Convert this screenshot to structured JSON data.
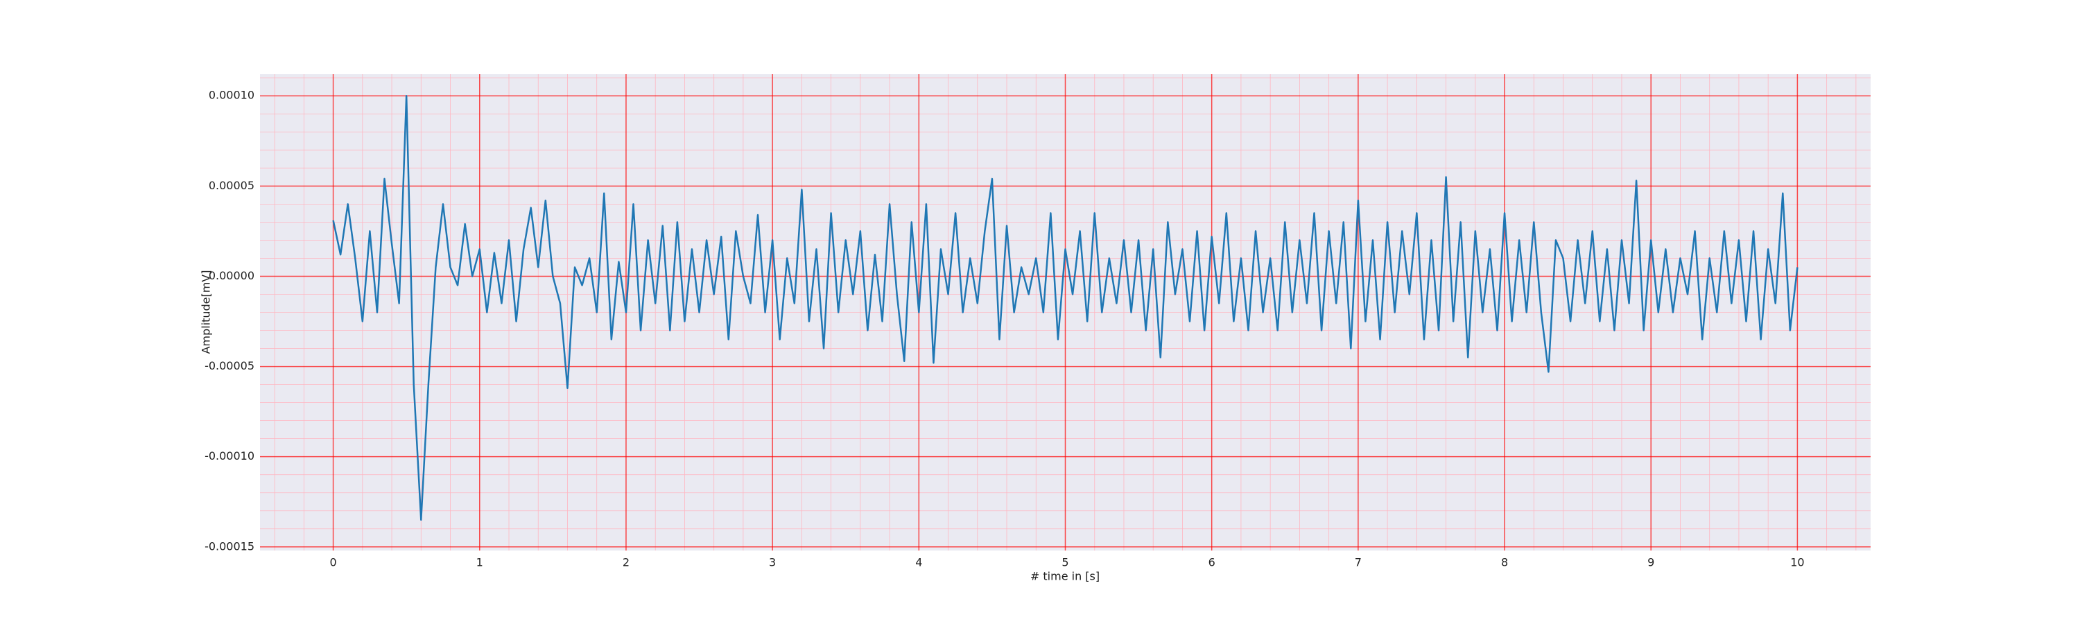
{
  "chart_data": {
    "type": "line",
    "x_label": "# time in [s]",
    "y_label": "Amplitude[mV]",
    "color": "#1f77b4",
    "grid": true,
    "minor_grid": true,
    "xlim": [
      -0.5,
      10.5
    ],
    "xticks": [
      0,
      1,
      2,
      3,
      4,
      5,
      6,
      7,
      8,
      9,
      10
    ],
    "ylim": [
      -0.000152,
      0.000112
    ],
    "yticks": [
      {
        "value": -0.00015,
        "label": "-0.00015"
      },
      {
        "value": -0.0001,
        "label": "-0.00010"
      },
      {
        "value": -5e-05,
        "label": "-0.00005"
      },
      {
        "value": 0,
        "label": "0.00000"
      },
      {
        "value": 5e-05,
        "label": "0.00005"
      },
      {
        "value": 0.0001,
        "label": "0.00010"
      }
    ],
    "x": [
      0,
      0.05,
      0.1,
      0.15,
      0.2,
      0.25,
      0.3,
      0.35,
      0.4,
      0.45,
      0.5,
      0.55,
      0.6,
      0.65,
      0.7,
      0.75,
      0.8,
      0.85,
      0.9,
      0.95,
      1,
      1.05,
      1.1,
      1.15,
      1.2,
      1.25,
      1.3,
      1.35,
      1.4,
      1.45,
      1.5,
      1.55,
      1.6,
      1.65,
      1.7,
      1.75,
      1.8,
      1.85,
      1.9,
      1.95,
      2,
      2.05,
      2.1,
      2.15,
      2.2,
      2.25,
      2.3,
      2.35,
      2.4,
      2.45,
      2.5,
      2.55,
      2.6,
      2.65,
      2.7,
      2.75,
      2.8,
      2.85,
      2.9,
      2.95,
      3,
      3.05,
      3.1,
      3.15,
      3.2,
      3.25,
      3.3,
      3.35,
      3.4,
      3.45,
      3.5,
      3.55,
      3.6,
      3.65,
      3.7,
      3.75,
      3.8,
      3.85,
      3.9,
      3.95,
      4,
      4.05,
      4.1,
      4.15,
      4.2,
      4.25,
      4.3,
      4.35,
      4.4,
      4.45,
      4.5,
      4.55,
      4.6,
      4.65,
      4.7,
      4.75,
      4.8,
      4.85,
      4.9,
      4.95,
      5,
      5.05,
      5.1,
      5.15,
      5.2,
      5.25,
      5.3,
      5.35,
      5.4,
      5.45,
      5.5,
      5.55,
      5.6,
      5.65,
      5.7,
      5.75,
      5.8,
      5.85,
      5.9,
      5.95,
      6,
      6.05,
      6.1,
      6.15,
      6.2,
      6.25,
      6.3,
      6.35,
      6.4,
      6.45,
      6.5,
      6.55,
      6.6,
      6.65,
      6.7,
      6.75,
      6.8,
      6.85,
      6.9,
      6.95,
      7,
      7.05,
      7.1,
      7.15,
      7.2,
      7.25,
      7.3,
      7.35,
      7.4,
      7.45,
      7.5,
      7.55,
      7.6,
      7.65,
      7.7,
      7.75,
      7.8,
      7.85,
      7.9,
      7.95,
      8,
      8.05,
      8.1,
      8.15,
      8.2,
      8.25,
      8.3,
      8.35,
      8.4,
      8.45,
      8.5,
      8.55,
      8.6,
      8.65,
      8.7,
      8.75,
      8.8,
      8.85,
      8.9,
      8.95,
      9,
      9.05,
      9.1,
      9.15,
      9.2,
      9.25,
      9.3,
      9.35,
      9.4,
      9.45,
      9.5,
      9.55,
      9.6,
      9.65,
      9.7,
      9.75,
      9.8,
      9.85,
      9.9,
      9.95,
      10
    ],
    "values": [
      3.1e-05,
      1.2e-05,
      4e-05,
      1e-05,
      -2.5e-05,
      2.5e-05,
      -2e-05,
      5.4e-05,
      1.8e-05,
      -1.5e-05,
      0.0001,
      -6e-05,
      -0.000135,
      -6e-05,
      5e-06,
      4e-05,
      5e-06,
      -5e-06,
      2.9e-05,
      0,
      1.5e-05,
      -2e-05,
      1.3e-05,
      -1.5e-05,
      2e-05,
      -2.5e-05,
      1.5e-05,
      3.8e-05,
      5e-06,
      4.2e-05,
      0,
      -1.5e-05,
      -6.2e-05,
      5e-06,
      -5e-06,
      1e-05,
      -2e-05,
      4.6e-05,
      -3.5e-05,
      8e-06,
      -2e-05,
      4e-05,
      -3e-05,
      2e-05,
      -1.5e-05,
      2.8e-05,
      -3e-05,
      3e-05,
      -2.5e-05,
      1.5e-05,
      -2e-05,
      2e-05,
      -1e-05,
      2.2e-05,
      -3.5e-05,
      2.5e-05,
      0,
      -1.5e-05,
      3.4e-05,
      -2e-05,
      2e-05,
      -3.5e-05,
      1e-05,
      -1.5e-05,
      4.8e-05,
      -2.5e-05,
      1.5e-05,
      -4e-05,
      3.5e-05,
      -2e-05,
      2e-05,
      -1e-05,
      2.5e-05,
      -3e-05,
      1.2e-05,
      -2.5e-05,
      4e-05,
      -1e-05,
      -4.7e-05,
      3e-05,
      -2e-05,
      4e-05,
      -4.8e-05,
      1.5e-05,
      -1e-05,
      3.5e-05,
      -2e-05,
      1e-05,
      -1.5e-05,
      2.5e-05,
      5.4e-05,
      -3.5e-05,
      2.8e-05,
      -2e-05,
      5e-06,
      -1e-05,
      1e-05,
      -2e-05,
      3.5e-05,
      -3.5e-05,
      1.5e-05,
      -1e-05,
      2.5e-05,
      -2.5e-05,
      3.5e-05,
      -2e-05,
      1e-05,
      -1.5e-05,
      2e-05,
      -2e-05,
      2e-05,
      -3e-05,
      1.5e-05,
      -4.5e-05,
      3e-05,
      -1e-05,
      1.5e-05,
      -2.5e-05,
      2.5e-05,
      -3e-05,
      2.2e-05,
      -1.5e-05,
      3.5e-05,
      -2.5e-05,
      1e-05,
      -3e-05,
      2.5e-05,
      -2e-05,
      1e-05,
      -3e-05,
      3e-05,
      -2e-05,
      2e-05,
      -1.5e-05,
      3.5e-05,
      -3e-05,
      2.5e-05,
      -1.5e-05,
      3e-05,
      -4e-05,
      4.2e-05,
      -2.5e-05,
      2e-05,
      -3.5e-05,
      3e-05,
      -2e-05,
      2.5e-05,
      -1e-05,
      3.5e-05,
      -3.5e-05,
      2e-05,
      -3e-05,
      5.5e-05,
      -2.5e-05,
      3e-05,
      -4.5e-05,
      2.5e-05,
      -2e-05,
      1.5e-05,
      -3e-05,
      3.5e-05,
      -2.5e-05,
      2e-05,
      -2e-05,
      3e-05,
      -2e-05,
      -5.3e-05,
      2e-05,
      1e-05,
      -2.5e-05,
      2e-05,
      -1.5e-05,
      2.5e-05,
      -2.5e-05,
      1.5e-05,
      -3e-05,
      2e-05,
      -1.5e-05,
      5.3e-05,
      -3e-05,
      2e-05,
      -2e-05,
      1.5e-05,
      -2e-05,
      1e-05,
      -1e-05,
      2.5e-05,
      -3.5e-05,
      1e-05,
      -2e-05,
      2.5e-05,
      -1.5e-05,
      2e-05,
      -2.5e-05,
      2.5e-05,
      -3.5e-05,
      1.5e-05,
      -1.5e-05,
      4.6e-05,
      -3e-05,
      5e-06
    ]
  }
}
